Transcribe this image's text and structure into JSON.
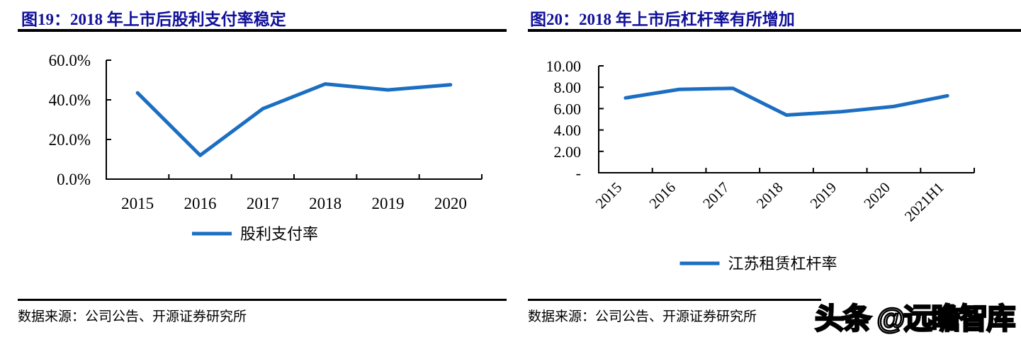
{
  "figures": [
    {
      "title": "图19：2018 年上市后股利支付率稳定",
      "source": "数据来源：公司公告、开源证券研究所"
    },
    {
      "title": "图20：2018 年上市后杠杆率有所增加",
      "source": "数据来源：公司公告、开源证券研究所"
    }
  ],
  "watermark": "头条 @远瞻智库",
  "colors": {
    "title_navy": "#10109a",
    "line_blue": "#1b6ec2",
    "axis_black": "#000000"
  },
  "chart_data": [
    {
      "type": "line",
      "title": "2018 年上市后股利支付率稳定",
      "categories": [
        "2015",
        "2016",
        "2017",
        "2018",
        "2019",
        "2020"
      ],
      "series": [
        {
          "name": "股利支付率",
          "values": [
            43.5,
            12.0,
            35.5,
            48.0,
            45.0,
            47.6
          ]
        }
      ],
      "unit": "%",
      "ylim": [
        0,
        60
      ],
      "yticks": [
        0,
        20,
        40,
        60
      ],
      "ytick_labels": [
        "0.0%",
        "20.0%",
        "40.0%",
        "60.0%"
      ],
      "xlabel": "",
      "ylabel": "",
      "grid": false,
      "legend": [
        "股利支付率"
      ],
      "legend_position": "bottom",
      "x_label_rotation": 0,
      "line_color": "#1b6ec2"
    },
    {
      "type": "line",
      "title": "2018 年上市后杠杆率有所增加",
      "categories": [
        "2015",
        "2016",
        "2017",
        "2018",
        "2019",
        "2020",
        "2021H1"
      ],
      "series": [
        {
          "name": "江苏租赁杠杆率",
          "values": [
            7.0,
            7.8,
            7.9,
            5.4,
            5.7,
            6.2,
            7.2
          ]
        }
      ],
      "unit": "x",
      "ylim": [
        0,
        10
      ],
      "yticks": [
        0,
        2,
        4,
        6,
        8,
        10
      ],
      "ytick_labels": [
        "-",
        "2.00",
        "4.00",
        "6.00",
        "8.00",
        "10.00"
      ],
      "xlabel": "",
      "ylabel": "",
      "grid": false,
      "legend": [
        "江苏租赁杠杆率"
      ],
      "legend_position": "bottom",
      "x_label_rotation": -45,
      "line_color": "#1b6ec2"
    }
  ]
}
